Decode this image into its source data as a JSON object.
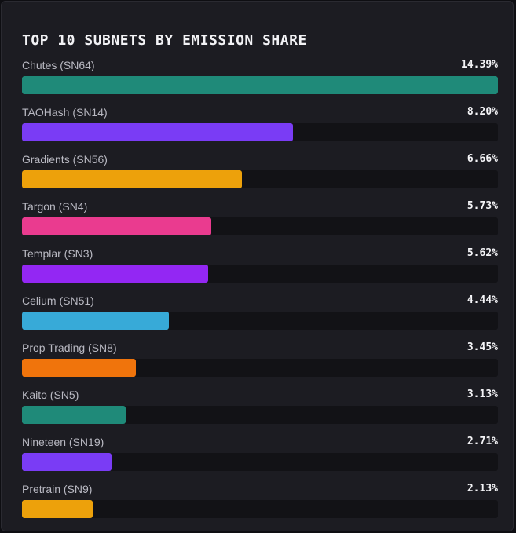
{
  "chart_data": {
    "type": "bar",
    "orientation": "horizontal",
    "title": "TOP 10 SUBNETS BY EMISSION SHARE",
    "xlabel": "",
    "ylabel": "",
    "xlim": [
      0,
      14.39
    ],
    "grid": false,
    "categories": [
      "Chutes (SN64)",
      "TAOHash (SN14)",
      "Gradients (SN56)",
      "Targon (SN4)",
      "Templar (SN3)",
      "Celium (SN51)",
      "Prop Trading (SN8)",
      "Kaito (SN5)",
      "Nineteen (SN19)",
      "Pretrain (SN9)"
    ],
    "values": [
      14.39,
      8.2,
      6.66,
      5.73,
      5.62,
      4.44,
      3.45,
      3.13,
      2.71,
      2.13
    ],
    "value_labels": [
      "14.39%",
      "8.20%",
      "6.66%",
      "5.73%",
      "5.62%",
      "4.44%",
      "3.45%",
      "3.13%",
      "2.71%",
      "2.13%"
    ],
    "colors": [
      "#1f8a79",
      "#7a3cf5",
      "#eda10b",
      "#ea3b8f",
      "#9327f3",
      "#37aad8",
      "#f0740c",
      "#1f8a79",
      "#7a3cf5",
      "#eda10b"
    ],
    "track_color": "#121216"
  }
}
